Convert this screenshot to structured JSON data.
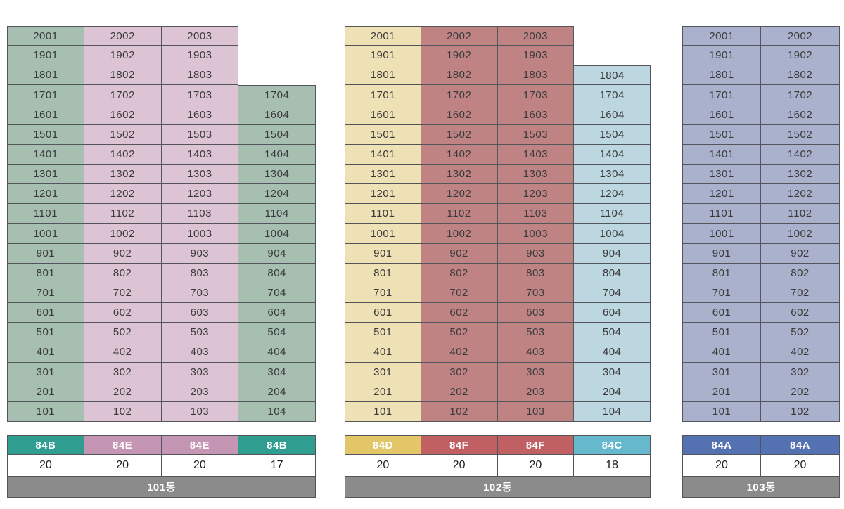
{
  "diagram": {
    "kind": "apartment-unit-layout-table",
    "total_floors_grid_rows": 20,
    "border_color": "#54555a",
    "footer_bg": "#8b8b8b",
    "unit_text_color": "#3a3a3a"
  },
  "buildings": [
    {
      "label": "101동",
      "columns": [
        {
          "type_label": "84B",
          "count": "20",
          "cell_bg": "#a6bfb1",
          "type_bg": "#2f9e90",
          "units": [
            "2001",
            "1901",
            "1801",
            "1701",
            "1601",
            "1501",
            "1401",
            "1301",
            "1201",
            "1101",
            "1001",
            "901",
            "801",
            "701",
            "601",
            "501",
            "401",
            "301",
            "201",
            "101"
          ]
        },
        {
          "type_label": "84E",
          "count": "20",
          "cell_bg": "#dcc4d4",
          "type_bg": "#c496b3",
          "units": [
            "2002",
            "1902",
            "1802",
            "1702",
            "1602",
            "1502",
            "1402",
            "1302",
            "1202",
            "1102",
            "1002",
            "902",
            "802",
            "702",
            "602",
            "502",
            "402",
            "302",
            "202",
            "102"
          ]
        },
        {
          "type_label": "84E",
          "count": "20",
          "cell_bg": "#dcc4d4",
          "type_bg": "#c496b3",
          "units": [
            "2003",
            "1903",
            "1803",
            "1703",
            "1603",
            "1503",
            "1403",
            "1303",
            "1203",
            "1103",
            "1003",
            "903",
            "803",
            "703",
            "603",
            "503",
            "403",
            "303",
            "203",
            "103"
          ]
        },
        {
          "type_label": "84B",
          "count": "17",
          "cell_bg": "#a6bfb1",
          "type_bg": "#2f9e90",
          "units": [
            "1704",
            "1604",
            "1504",
            "1404",
            "1304",
            "1204",
            "1104",
            "1004",
            "904",
            "804",
            "704",
            "604",
            "504",
            "404",
            "304",
            "204",
            "104"
          ]
        }
      ]
    },
    {
      "label": "102동",
      "columns": [
        {
          "type_label": "84D",
          "count": "20",
          "cell_bg": "#eee1b5",
          "type_bg": "#e3c667",
          "units": [
            "2001",
            "1901",
            "1801",
            "1701",
            "1601",
            "1501",
            "1401",
            "1301",
            "1201",
            "1101",
            "1001",
            "901",
            "801",
            "701",
            "601",
            "501",
            "401",
            "301",
            "201",
            "101"
          ]
        },
        {
          "type_label": "84F",
          "count": "20",
          "cell_bg": "#bf8384",
          "type_bg": "#c06062",
          "units": [
            "2002",
            "1902",
            "1802",
            "1702",
            "1602",
            "1502",
            "1402",
            "1302",
            "1202",
            "1102",
            "1002",
            "902",
            "802",
            "702",
            "602",
            "502",
            "402",
            "302",
            "202",
            "102"
          ]
        },
        {
          "type_label": "84F",
          "count": "20",
          "cell_bg": "#bf8384",
          "type_bg": "#c06062",
          "units": [
            "2003",
            "1903",
            "1803",
            "1703",
            "1603",
            "1503",
            "1403",
            "1303",
            "1203",
            "1103",
            "1003",
            "903",
            "803",
            "703",
            "603",
            "503",
            "403",
            "303",
            "203",
            "103"
          ]
        },
        {
          "type_label": "84C",
          "count": "18",
          "cell_bg": "#bcd7e0",
          "type_bg": "#66b9cd",
          "units": [
            "1804",
            "1704",
            "1604",
            "1504",
            "1404",
            "1304",
            "1204",
            "1104",
            "1004",
            "904",
            "804",
            "704",
            "604",
            "504",
            "404",
            "304",
            "204",
            "104"
          ]
        }
      ]
    },
    {
      "label": "103동",
      "columns": [
        {
          "type_label": "84A",
          "count": "20",
          "cell_bg": "#aab1cc",
          "type_bg": "#5471b1",
          "units": [
            "2001",
            "1901",
            "1801",
            "1701",
            "1601",
            "1501",
            "1401",
            "1301",
            "1201",
            "1101",
            "1001",
            "901",
            "801",
            "701",
            "601",
            "501",
            "401",
            "301",
            "201",
            "101"
          ]
        },
        {
          "type_label": "84A",
          "count": "20",
          "cell_bg": "#aab1cc",
          "type_bg": "#5471b1",
          "units": [
            "2002",
            "1902",
            "1802",
            "1702",
            "1602",
            "1502",
            "1402",
            "1302",
            "1202",
            "1102",
            "1002",
            "902",
            "802",
            "702",
            "602",
            "502",
            "402",
            "302",
            "202",
            "102"
          ]
        }
      ]
    }
  ]
}
